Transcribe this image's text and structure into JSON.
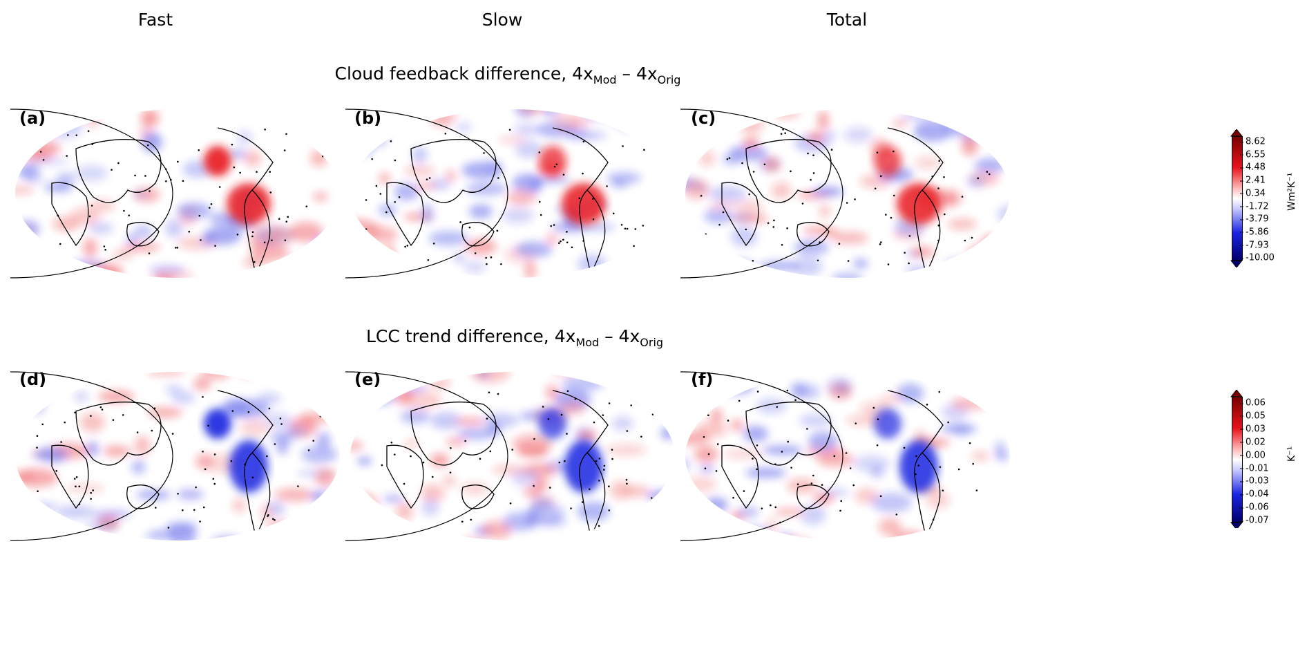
{
  "columns": [
    "Fast",
    "Slow",
    "Total"
  ],
  "rows": [
    {
      "title_main": "Cloud feedback difference, 4x",
      "sub1": "Mod",
      "mid": " – 4x",
      "sub2": "Orig",
      "panels": [
        "(a)",
        "(b)",
        "(c)"
      ],
      "colorbar": {
        "ticks": [
          "8.62",
          "6.55",
          "4.48",
          "2.41",
          "0.34",
          "-1.72",
          "-3.79",
          "-5.86",
          "-7.93",
          "-10.00"
        ],
        "unit": "Wm²K⁻¹"
      }
    },
    {
      "title_main": "LCC trend difference, 4x",
      "sub1": "Mod",
      "mid": " – 4x",
      "sub2": "Orig",
      "panels": [
        "(d)",
        "(e)",
        "(f)"
      ],
      "colorbar": {
        "ticks": [
          "0.06",
          "0.05",
          "0.03",
          "0.02",
          "0.00",
          "-0.01",
          "-0.03",
          "-0.04",
          "-0.06",
          "-0.07"
        ],
        "unit": "K⁻¹"
      }
    }
  ],
  "colors": {
    "pos": "#e8141c",
    "neg": "#1a24e0",
    "dark_pos": "#7a0000",
    "dark_neg": "#00006e"
  }
}
